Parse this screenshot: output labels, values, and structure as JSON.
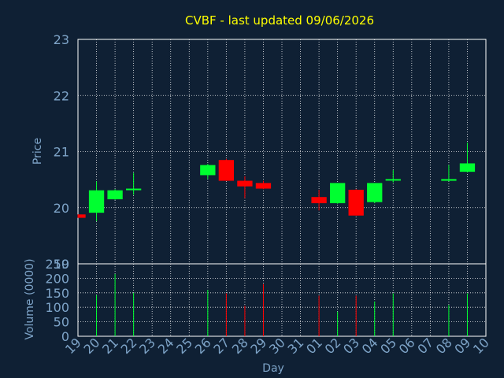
{
  "title": "CVBF - last updated 09/06/2026",
  "colors": {
    "background": "#0f2034",
    "plot_bg": "#0f2034",
    "axis_text": "#7ea4c8",
    "title": "#ffff00",
    "grid": "#ffffff",
    "up": "#00ff30",
    "down": "#ff0000",
    "frame": "#ffffff"
  },
  "chart_data": [
    {
      "type": "candlestick",
      "ylabel": "Price",
      "ylim": [
        19,
        23
      ],
      "yticks": [
        19,
        20,
        21,
        22,
        23
      ],
      "grid": true,
      "x": [
        "19",
        "20",
        "21",
        "22",
        "23",
        "24",
        "25",
        "26",
        "27",
        "28",
        "29",
        "30",
        "31",
        "01",
        "02",
        "03",
        "04",
        "05",
        "06",
        "07",
        "08",
        "09",
        "10"
      ],
      "candles": [
        {
          "x": "19",
          "open": 19.88,
          "high": 19.88,
          "low": 19.82,
          "close": 19.82
        },
        {
          "x": "20",
          "open": 19.91,
          "high": 20.47,
          "low": 19.76,
          "close": 20.31
        },
        {
          "x": "21",
          "open": 20.15,
          "high": 20.33,
          "low": 20.14,
          "close": 20.31
        },
        {
          "x": "22",
          "open": 20.32,
          "high": 20.62,
          "low": 20.23,
          "close": 20.34
        },
        {
          "x": "26",
          "open": 20.58,
          "high": 20.78,
          "low": 20.51,
          "close": 20.76
        },
        {
          "x": "27",
          "open": 20.85,
          "high": 20.87,
          "low": 20.48,
          "close": 20.48
        },
        {
          "x": "28",
          "open": 20.48,
          "high": 20.56,
          "low": 20.17,
          "close": 20.38
        },
        {
          "x": "29",
          "open": 20.44,
          "high": 20.48,
          "low": 20.33,
          "close": 20.34
        },
        {
          "x": "01",
          "open": 20.19,
          "high": 20.32,
          "low": 19.95,
          "close": 20.08
        },
        {
          "x": "02",
          "open": 20.08,
          "high": 20.44,
          "low": 20.07,
          "close": 20.44
        },
        {
          "x": "03",
          "open": 20.32,
          "high": 20.33,
          "low": 19.86,
          "close": 19.86
        },
        {
          "x": "04",
          "open": 20.1,
          "high": 20.44,
          "low": 20.08,
          "close": 20.44
        },
        {
          "x": "05",
          "open": 20.49,
          "high": 20.67,
          "low": 20.45,
          "close": 20.51
        },
        {
          "x": "08",
          "open": 20.48,
          "high": 20.76,
          "low": 20.47,
          "close": 20.51
        },
        {
          "x": "09",
          "open": 20.64,
          "high": 21.16,
          "low": 20.63,
          "close": 20.79
        }
      ]
    },
    {
      "type": "bar",
      "ylabel": "Volume (0000)",
      "xlabel": "Day",
      "ylim": [
        0,
        250
      ],
      "yticks": [
        0,
        50,
        100,
        150,
        200,
        250
      ],
      "grid": true,
      "x": [
        "19",
        "20",
        "21",
        "22",
        "23",
        "24",
        "25",
        "26",
        "27",
        "28",
        "29",
        "30",
        "31",
        "01",
        "02",
        "03",
        "04",
        "05",
        "06",
        "07",
        "08",
        "09",
        "10"
      ],
      "bars": [
        {
          "x": "20",
          "value": 142,
          "dir": "up"
        },
        {
          "x": "21",
          "value": 215,
          "dir": "up"
        },
        {
          "x": "22",
          "value": 150,
          "dir": "up"
        },
        {
          "x": "26",
          "value": 160,
          "dir": "up"
        },
        {
          "x": "27",
          "value": 148,
          "dir": "down"
        },
        {
          "x": "28",
          "value": 105,
          "dir": "down"
        },
        {
          "x": "29",
          "value": 180,
          "dir": "down"
        },
        {
          "x": "01",
          "value": 140,
          "dir": "down"
        },
        {
          "x": "02",
          "value": 85,
          "dir": "up"
        },
        {
          "x": "03",
          "value": 140,
          "dir": "down"
        },
        {
          "x": "04",
          "value": 120,
          "dir": "up"
        },
        {
          "x": "05",
          "value": 148,
          "dir": "up"
        },
        {
          "x": "08",
          "value": 108,
          "dir": "up"
        },
        {
          "x": "09",
          "value": 148,
          "dir": "up"
        }
      ]
    }
  ]
}
